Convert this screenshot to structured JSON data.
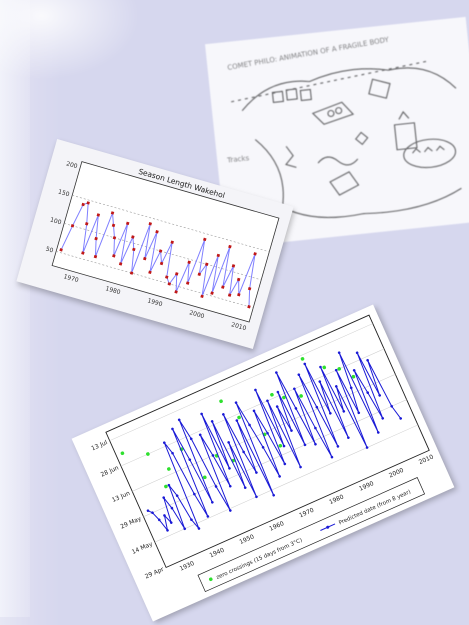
{
  "sketch": {
    "caption_top": "COMET PHILO: ANIMATION OF A FRAGILE BODY",
    "caption_left": "Tracks"
  },
  "chart_season": {
    "type": "line",
    "title": "Season Length Wakehol",
    "x_ticks": [
      "1970",
      "1980",
      "1990",
      "2000",
      "2010"
    ],
    "y_ticks": [
      "200",
      "150",
      "100",
      "50"
    ],
    "colors": {
      "line": "#7f7fff",
      "points": "#c01818"
    },
    "chart_data": {
      "type": "line",
      "title": "Season Length Wakehol",
      "x": [
        1966,
        1967,
        1968,
        1969,
        1970,
        1971,
        1972,
        1973,
        1974,
        1975,
        1976,
        1977,
        1978,
        1979,
        1980,
        1981,
        1982,
        1983,
        1984,
        1985,
        1986,
        1987,
        1988,
        1989,
        1990,
        1991,
        1992,
        1993,
        1994,
        1995,
        1996,
        1997,
        1998,
        1999,
        2000,
        2001,
        2002,
        2003,
        2004,
        2005,
        2006,
        2007,
        2008,
        2009,
        2010,
        2011
      ],
      "values": [
        55,
        100,
        140,
        145,
        110,
        60,
        130,
        90,
        60,
        140,
        120,
        100,
        70,
        130,
        60,
        110,
        90,
        50,
        140,
        80,
        130,
        60,
        100,
        80,
        120,
        60,
        50,
        70,
        40,
        95,
        60,
        140,
        80,
        100,
        45,
        120,
        55,
        140,
        70,
        110,
        60,
        90,
        65,
        140,
        80,
        50
      ],
      "xlim": [
        1965,
        2012
      ],
      "ylim": [
        25,
        210
      ]
    }
  },
  "chart_timeline": {
    "type": "line",
    "y_ticks": [
      "13 Jul",
      "28 Jun",
      "13 Jun",
      "29 May",
      "14 May",
      "29 Apr"
    ],
    "x_ticks": [
      "1930",
      "1940",
      "1950",
      "1960",
      "1970",
      "1980",
      "1990",
      "2000",
      "2010"
    ],
    "legend": [
      {
        "label": "zero crossings (15 days from 3°C)"
      },
      {
        "label": "Predicted date (from 8 year)"
      }
    ],
    "colors": {
      "line": "#1a1ad6",
      "marker": "#1a1ad6",
      "dot": "#2ee02e"
    },
    "chart_data": {
      "type": "line",
      "x": [
        1926,
        1927,
        1928,
        1929,
        1930,
        1931,
        1932,
        1933,
        1934,
        1935,
        1936,
        1937,
        1938,
        1939,
        1940,
        1941,
        1942,
        1943,
        1944,
        1945,
        1946,
        1947,
        1948,
        1949,
        1950,
        1951,
        1952,
        1953,
        1954,
        1955,
        1956,
        1957,
        1958,
        1959,
        1960,
        1961,
        1962,
        1963,
        1964,
        1965,
        1966,
        1967,
        1968,
        1969,
        1970,
        1971,
        1972,
        1973,
        1974,
        1975,
        1976,
        1977,
        1978,
        1979,
        1980,
        1981,
        1982,
        1983,
        1984,
        1985,
        1986,
        1987,
        1988,
        1989,
        1990,
        1991,
        1992,
        1993,
        1994,
        1995,
        1996,
        1997,
        1998,
        1999,
        2000,
        2001,
        2002,
        2003,
        2004,
        2005,
        2006,
        2007,
        2008
      ],
      "values": [
        32,
        30,
        25,
        18,
        26,
        21,
        35,
        28,
        15,
        40,
        33,
        18,
        12,
        62,
        55,
        30,
        16,
        67,
        48,
        22,
        70,
        58,
        29,
        14,
        58,
        45,
        26,
        68,
        35,
        62,
        22,
        48,
        15,
        63,
        40,
        27,
        57,
        12,
        66,
        52,
        38,
        20,
        58,
        44,
        25,
        68,
        34,
        60,
        20,
        55,
        40,
        62,
        30,
        72,
        50,
        28,
        60,
        36,
        18,
        66,
        46,
        22,
        70,
        40,
        58,
        24,
        65,
        38,
        52,
        15,
        60,
        34,
        48,
        68,
        20,
        56,
        42,
        26,
        64,
        38,
        58,
        30,
        22
      ],
      "dots": [
        {
          "x": 1926,
          "y": 66
        },
        {
          "x": 1933,
          "y": 60
        },
        {
          "x": 1934,
          "y": 40
        },
        {
          "x": 1937,
          "y": 48
        },
        {
          "x": 1943,
          "y": 55
        },
        {
          "x": 1946,
          "y": 36
        },
        {
          "x": 1952,
          "y": 44
        },
        {
          "x": 1956,
          "y": 38
        },
        {
          "x": 1960,
          "y": 70
        },
        {
          "x": 1963,
          "y": 58
        },
        {
          "x": 1968,
          "y": 44
        },
        {
          "x": 1971,
          "y": 35
        },
        {
          "x": 1975,
          "y": 62
        },
        {
          "x": 1978,
          "y": 58
        },
        {
          "x": 1983,
          "y": 55
        },
        {
          "x": 1988,
          "y": 73
        },
        {
          "x": 1993,
          "y": 64
        },
        {
          "x": 1997,
          "y": 60
        },
        {
          "x": 2000,
          "y": 53
        }
      ],
      "xlim": [
        1924,
        2012
      ],
      "ylim": [
        0,
        80
      ]
    }
  }
}
